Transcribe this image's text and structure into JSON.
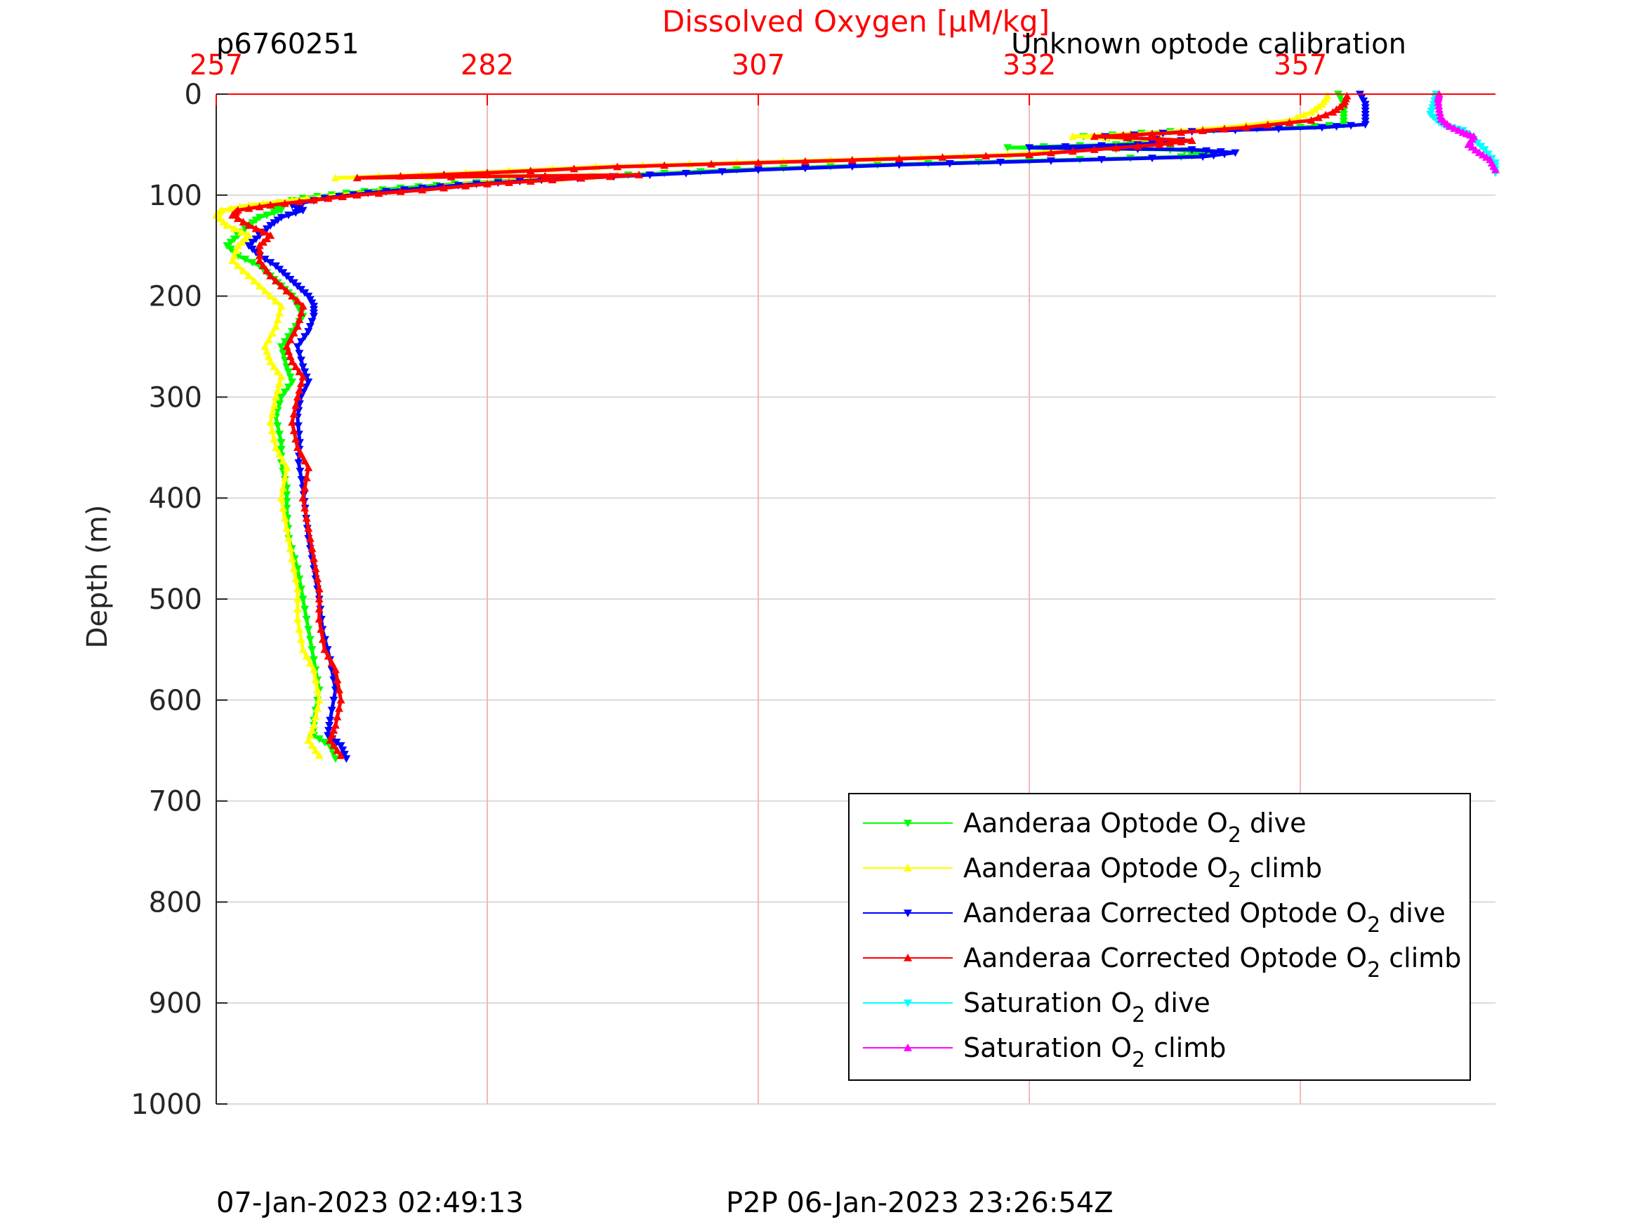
{
  "chart_data": {
    "type": "line",
    "title": "Dissolved Oxygen [µM/kg]",
    "corner_left_label": "p6760251",
    "corner_right_label": "Unknown optode calibration",
    "footer_left": "07-Jan-2023 02:49:13",
    "footer_center": "P2P 06-Jan-2023 23:26:54Z",
    "xlabel": "Dissolved Oxygen [µM/kg]",
    "ylabel": "Depth (m)",
    "xlim": [
      257,
      375
    ],
    "ylim": [
      0,
      1000
    ],
    "y_reversed": true,
    "x_axis_position": "top",
    "xticks": [
      257,
      282,
      307,
      332,
      357
    ],
    "xtick_labels": [
      "257",
      "282",
      "307",
      "332",
      "357"
    ],
    "yticks": [
      0,
      100,
      200,
      300,
      400,
      500,
      600,
      700,
      800,
      900,
      1000
    ],
    "ytick_labels": [
      "0",
      "100",
      "200",
      "300",
      "400",
      "500",
      "600",
      "700",
      "800",
      "900",
      "1000"
    ],
    "grid": true,
    "legend_position": "bottom-right",
    "colors": {
      "axis_top": "#ff0000",
      "axis": "#262626",
      "grid_x": "#f2b8b8",
      "grid_y": "#d9d9d9"
    },
    "series": [
      {
        "name_main": "Aanderaa Optode O",
        "name_sub": "2",
        "name_tail": " dive",
        "color": "#00ff00",
        "marker": "triangle-down",
        "points": [
          [
            360.5,
            0
          ],
          [
            361,
            10
          ],
          [
            361,
            20
          ],
          [
            361,
            30
          ],
          [
            357,
            33
          ],
          [
            345,
            37
          ],
          [
            337,
            42
          ],
          [
            344,
            46
          ],
          [
            340,
            50
          ],
          [
            330,
            53
          ],
          [
            345,
            55
          ],
          [
            349,
            58
          ],
          [
            346,
            62
          ],
          [
            332,
            66
          ],
          [
            318,
            70
          ],
          [
            305,
            75
          ],
          [
            295,
            80
          ],
          [
            285,
            85
          ],
          [
            279,
            89
          ],
          [
            274,
            93
          ],
          [
            269,
            98
          ],
          [
            265,
            103
          ],
          [
            262,
            110
          ],
          [
            263,
            115
          ],
          [
            261,
            122
          ],
          [
            260,
            130
          ],
          [
            259,
            140
          ],
          [
            258,
            150
          ],
          [
            259,
            160
          ],
          [
            261,
            170
          ],
          [
            262,
            180
          ],
          [
            263,
            190
          ],
          [
            264,
            200
          ],
          [
            264.5,
            210
          ],
          [
            265,
            220
          ],
          [
            264,
            235
          ],
          [
            263,
            250
          ],
          [
            263.5,
            270
          ],
          [
            264,
            285
          ],
          [
            263,
            300
          ],
          [
            262.5,
            320
          ],
          [
            263,
            345
          ],
          [
            263,
            365
          ],
          [
            263.5,
            390
          ],
          [
            263.5,
            410
          ],
          [
            263.7,
            440
          ],
          [
            264.5,
            470
          ],
          [
            265,
            500
          ],
          [
            265.5,
            530
          ],
          [
            266,
            560
          ],
          [
            266.5,
            590
          ],
          [
            266,
            620
          ],
          [
            266,
            635
          ],
          [
            267.5,
            645
          ],
          [
            268,
            658
          ]
        ]
      },
      {
        "name_main": "Aanderaa Optode O",
        "name_sub": "2",
        "name_tail": " climb",
        "color": "#ffff00",
        "marker": "triangle-up",
        "points": [
          [
            266.5,
            655
          ],
          [
            265.5,
            640
          ],
          [
            266,
            625
          ],
          [
            266.5,
            600
          ],
          [
            266,
            570
          ],
          [
            265,
            550
          ],
          [
            264.5,
            520
          ],
          [
            264.5,
            490
          ],
          [
            264,
            460
          ],
          [
            263.5,
            430
          ],
          [
            263,
            400
          ],
          [
            263.5,
            370
          ],
          [
            262.5,
            350
          ],
          [
            262,
            325
          ],
          [
            262.5,
            300
          ],
          [
            263,
            280
          ],
          [
            262,
            265
          ],
          [
            261.5,
            250
          ],
          [
            262.5,
            230
          ],
          [
            263,
            210
          ],
          [
            261.5,
            195
          ],
          [
            260,
            180
          ],
          [
            258.5,
            165
          ],
          [
            259,
            150
          ],
          [
            260,
            140
          ],
          [
            258,
            130
          ],
          [
            257,
            120
          ],
          [
            257.5,
            115
          ],
          [
            260,
            110
          ],
          [
            264,
            105
          ],
          [
            268,
            100
          ],
          [
            274,
            95
          ],
          [
            280,
            89
          ],
          [
            286,
            85
          ],
          [
            294,
            80
          ],
          [
            268,
            83
          ],
          [
            280,
            78
          ],
          [
            292,
            72
          ],
          [
            305,
            68
          ],
          [
            318,
            64
          ],
          [
            330,
            60
          ],
          [
            336,
            55
          ],
          [
            342,
            50
          ],
          [
            345,
            46
          ],
          [
            336,
            42
          ],
          [
            344,
            38
          ],
          [
            350,
            33
          ],
          [
            356,
            26
          ],
          [
            358,
            18
          ],
          [
            359,
            10
          ],
          [
            359.5,
            2
          ]
        ]
      },
      {
        "name_main": "Aanderaa Corrected Optode O",
        "name_sub": "2",
        "name_tail": " dive",
        "color": "#0000ff",
        "marker": "triangle-down",
        "points": [
          [
            362.5,
            0
          ],
          [
            363,
            10
          ],
          [
            363,
            20
          ],
          [
            363,
            30
          ],
          [
            359,
            33
          ],
          [
            347,
            37
          ],
          [
            339,
            42
          ],
          [
            346,
            46
          ],
          [
            342,
            50
          ],
          [
            332,
            53
          ],
          [
            347,
            55
          ],
          [
            351,
            58
          ],
          [
            348,
            62
          ],
          [
            334,
            66
          ],
          [
            320,
            70
          ],
          [
            307,
            75
          ],
          [
            297,
            80
          ],
          [
            287,
            85
          ],
          [
            281,
            89
          ],
          [
            276,
            93
          ],
          [
            271,
            98
          ],
          [
            267,
            103
          ],
          [
            264,
            110
          ],
          [
            265,
            115
          ],
          [
            263,
            122
          ],
          [
            262,
            130
          ],
          [
            261,
            140
          ],
          [
            260,
            150
          ],
          [
            261,
            160
          ],
          [
            262.5,
            170
          ],
          [
            263.5,
            180
          ],
          [
            264.5,
            190
          ],
          [
            265.5,
            200
          ],
          [
            266,
            210
          ],
          [
            266,
            220
          ],
          [
            265.5,
            235
          ],
          [
            264.5,
            250
          ],
          [
            265,
            270
          ],
          [
            265.5,
            285
          ],
          [
            264.8,
            300
          ],
          [
            264.5,
            320
          ],
          [
            264.7,
            345
          ],
          [
            264.6,
            365
          ],
          [
            265,
            390
          ],
          [
            265.2,
            410
          ],
          [
            265.5,
            440
          ],
          [
            266,
            470
          ],
          [
            266.5,
            500
          ],
          [
            266.8,
            530
          ],
          [
            267.5,
            560
          ],
          [
            268,
            590
          ],
          [
            267.5,
            620
          ],
          [
            267.3,
            635
          ],
          [
            268.5,
            645
          ],
          [
            269,
            658
          ]
        ]
      },
      {
        "name_main": "Aanderaa Corrected Optode O",
        "name_sub": "2",
        "name_tail": " climb",
        "color": "#ff0000",
        "marker": "triangle-up",
        "points": [
          [
            268.5,
            655
          ],
          [
            267.5,
            640
          ],
          [
            268,
            625
          ],
          [
            268.5,
            600
          ],
          [
            268,
            570
          ],
          [
            267,
            550
          ],
          [
            266.5,
            520
          ],
          [
            266.5,
            490
          ],
          [
            266,
            460
          ],
          [
            265.5,
            430
          ],
          [
            265,
            400
          ],
          [
            265.5,
            370
          ],
          [
            264.5,
            350
          ],
          [
            264,
            325
          ],
          [
            264.5,
            300
          ],
          [
            265,
            280
          ],
          [
            264,
            265
          ],
          [
            263.5,
            250
          ],
          [
            264.5,
            230
          ],
          [
            265,
            210
          ],
          [
            263.5,
            195
          ],
          [
            262,
            180
          ],
          [
            261,
            165
          ],
          [
            261,
            150
          ],
          [
            262,
            140
          ],
          [
            260,
            130
          ],
          [
            258.5,
            120
          ],
          [
            259,
            115
          ],
          [
            262,
            110
          ],
          [
            266,
            105
          ],
          [
            270,
            100
          ],
          [
            276,
            95
          ],
          [
            282,
            89
          ],
          [
            288,
            85
          ],
          [
            296,
            80
          ],
          [
            270,
            83
          ],
          [
            282,
            78
          ],
          [
            294,
            72
          ],
          [
            307,
            68
          ],
          [
            320,
            64
          ],
          [
            332,
            60
          ],
          [
            338,
            55
          ],
          [
            344,
            50
          ],
          [
            347,
            46
          ],
          [
            338,
            42
          ],
          [
            346,
            38
          ],
          [
            352,
            33
          ],
          [
            358,
            26
          ],
          [
            360,
            18
          ],
          [
            361,
            10
          ],
          [
            361.3,
            2
          ]
        ]
      },
      {
        "name_main": "Saturation O",
        "name_sub": "2",
        "name_tail": " dive",
        "color": "#00ffff",
        "marker": "triangle-down",
        "points": [
          [
            369.5,
            0
          ],
          [
            369.3,
            10
          ],
          [
            369,
            20
          ],
          [
            369.8,
            28
          ],
          [
            370.5,
            32
          ],
          [
            372,
            36
          ],
          [
            373,
            45
          ],
          [
            374,
            55
          ],
          [
            375,
            68
          ],
          [
            375,
            78
          ]
        ]
      },
      {
        "name_main": "Saturation O",
        "name_sub": "2",
        "name_tail": " climb",
        "color": "#ff00ff",
        "marker": "triangle-up",
        "points": [
          [
            375,
            75
          ],
          [
            374.5,
            65
          ],
          [
            373.5,
            58
          ],
          [
            372.5,
            50
          ],
          [
            373,
            42
          ],
          [
            372,
            38
          ],
          [
            370.8,
            32
          ],
          [
            370,
            25
          ],
          [
            369.8,
            15
          ],
          [
            369.7,
            5
          ],
          [
            369.8,
            0
          ]
        ]
      }
    ]
  }
}
